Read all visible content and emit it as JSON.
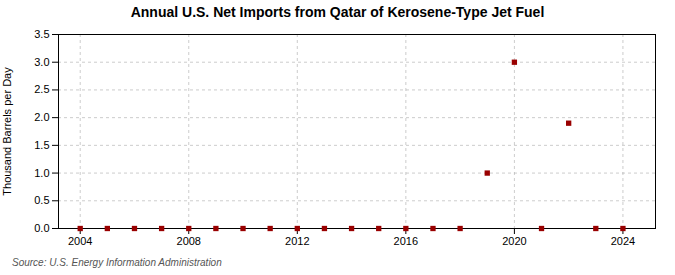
{
  "chart_data": {
    "type": "scatter",
    "title": "Annual U.S. Net Imports from Qatar of Kerosene-Type Jet Fuel",
    "ylabel": "Thousand Barrels per Day",
    "source": "Source: U.S. Energy Information Administration",
    "x": [
      2004,
      2005,
      2006,
      2007,
      2008,
      2009,
      2010,
      2011,
      2012,
      2013,
      2014,
      2015,
      2016,
      2017,
      2018,
      2019,
      2020,
      2021,
      2022,
      2023,
      2024
    ],
    "values": [
      0,
      0,
      0,
      0,
      0,
      0,
      0,
      0,
      0,
      0,
      0,
      0,
      0,
      0,
      0,
      1.0,
      3.0,
      0,
      1.9,
      0,
      0
    ],
    "color": "#990000",
    "marker": "square",
    "xlim": [
      2003.2,
      2025.2
    ],
    "xticks": [
      2004,
      2008,
      2012,
      2016,
      2020,
      2024
    ],
    "ylim": [
      0,
      3.5
    ],
    "yticks": [
      {
        "value": 0,
        "label": "0.0"
      },
      0.5,
      {
        "value": 1,
        "label": "1.0"
      },
      1.5,
      {
        "value": 2,
        "label": "2.0"
      },
      2.5,
      {
        "value": 3,
        "label": "3.0"
      },
      3.5
    ],
    "grid": true
  }
}
